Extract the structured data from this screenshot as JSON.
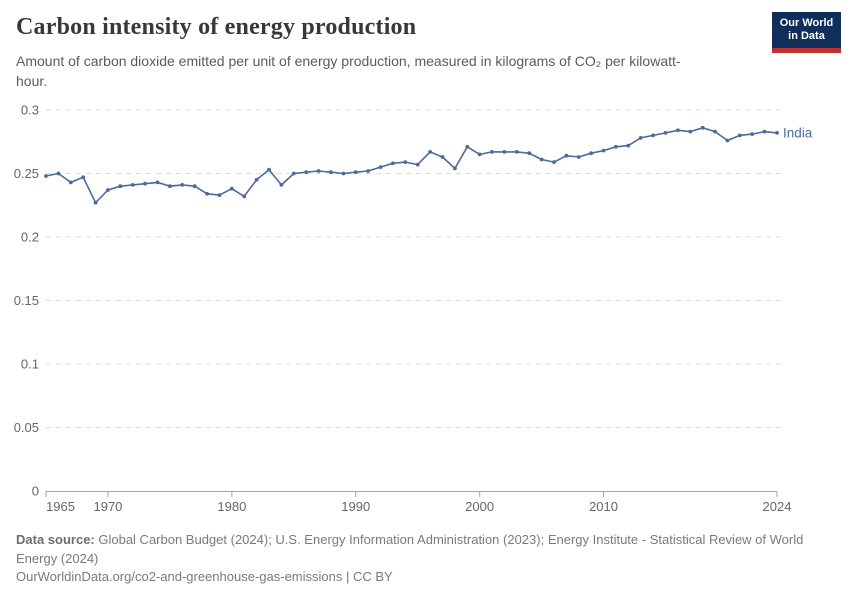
{
  "header": {
    "title": "Carbon intensity of energy production",
    "subtitle": "Amount of carbon dioxide emitted per unit of energy production, measured in kilograms of CO₂ per kilowatt-hour."
  },
  "logo": {
    "line1": "Our World",
    "line2": "in Data",
    "bg_color": "#0f2e5a",
    "bar_color": "#c12f2f"
  },
  "chart_data": {
    "type": "line",
    "title": "Carbon intensity of energy production",
    "unit": "kilograms of CO₂ per kilowatt-hour",
    "grid": "horizontal-dashed",
    "legend_position": "line-end-label",
    "xlim": [
      1965,
      2024
    ],
    "ylim": [
      0,
      0.3
    ],
    "yticks": [
      0,
      0.05,
      0.1,
      0.15,
      0.2,
      0.25,
      0.3
    ],
    "ytick_labels": [
      "0",
      "0.05",
      "0.1",
      "0.15",
      "0.2",
      "0.25",
      "0.3"
    ],
    "xticks": [
      1965,
      1970,
      1980,
      1990,
      2000,
      2010,
      2024
    ],
    "series": [
      {
        "name": "India",
        "color": "#4C6A9C",
        "x": [
          1965,
          1966,
          1967,
          1968,
          1969,
          1970,
          1971,
          1972,
          1973,
          1974,
          1975,
          1976,
          1977,
          1978,
          1979,
          1980,
          1981,
          1982,
          1983,
          1984,
          1985,
          1986,
          1987,
          1988,
          1989,
          1990,
          1991,
          1992,
          1993,
          1994,
          1995,
          1996,
          1997,
          1998,
          1999,
          2000,
          2001,
          2002,
          2003,
          2004,
          2005,
          2006,
          2007,
          2008,
          2009,
          2010,
          2011,
          2012,
          2013,
          2014,
          2015,
          2016,
          2017,
          2018,
          2019,
          2020,
          2021,
          2022,
          2023,
          2024
        ],
        "values": [
          0.248,
          0.25,
          0.243,
          0.247,
          0.227,
          0.237,
          0.24,
          0.241,
          0.242,
          0.243,
          0.24,
          0.241,
          0.24,
          0.234,
          0.233,
          0.238,
          0.232,
          0.245,
          0.253,
          0.241,
          0.25,
          0.251,
          0.252,
          0.251,
          0.25,
          0.251,
          0.252,
          0.255,
          0.258,
          0.259,
          0.257,
          0.267,
          0.263,
          0.254,
          0.271,
          0.265,
          0.267,
          0.267,
          0.267,
          0.266,
          0.261,
          0.259,
          0.264,
          0.263,
          0.266,
          0.268,
          0.271,
          0.272,
          0.278,
          0.28,
          0.282,
          0.284,
          0.283,
          0.286,
          0.283,
          0.276,
          0.28,
          0.281,
          0.283,
          0.282
        ]
      }
    ],
    "styles": {
      "gridline_color": "#dcdcdc",
      "axis_color": "#a3a3a3",
      "tick_label_color": "#666666"
    }
  },
  "footer": {
    "source_label": "Data source:",
    "source_text": " Global Carbon Budget (2024); U.S. Energy Information Administration (2023); Energy Institute - Statistical Review of World Energy (2024)",
    "url_text": "OurWorldinData.org/co2-and-greenhouse-gas-emissions | CC BY"
  }
}
